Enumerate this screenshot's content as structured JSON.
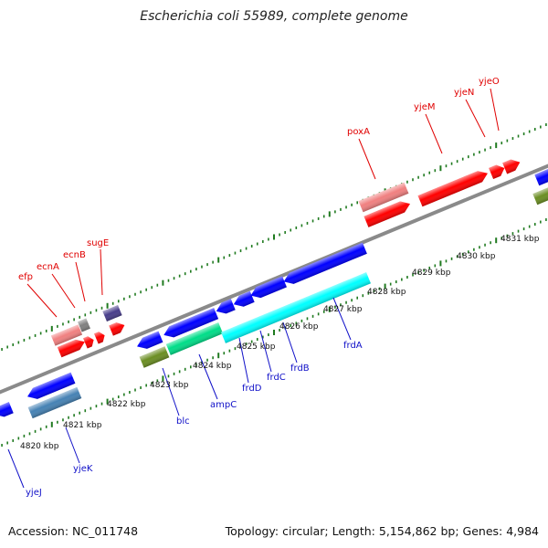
{
  "title": "Escherichia coli 55989, complete genome",
  "footer": {
    "accession": "Accession: NC_011748",
    "summary": "Topology: circular; Length: 5,154,862 bp; Genes: 4,984"
  },
  "colors": {
    "backbone": "#8a8a8a",
    "tick": "#1f7a1f",
    "forward_label": "#e00000",
    "reverse_label": "#1010c8",
    "red_gene": "#ff0000",
    "pink_gene": "#f08080",
    "blue_gene": "#0000ff",
    "cyan_gene": "#00ffff",
    "teal_gene": "#00dd88",
    "olive_gene": "#6b8e23",
    "steel_gene": "#4682b4",
    "slate_gene": "#483d8b",
    "gray_gene": "#808080"
  },
  "kbp_labels": [
    "4820 kbp",
    "4821 kbp",
    "4822 kbp",
    "4823 kbp",
    "4824 kbp",
    "4825 kbp",
    "4826 kbp",
    "4827 kbp",
    "4828 kbp",
    "4829 kbp",
    "4830 kbp",
    "4831 kbp"
  ],
  "forward_gene_labels": [
    "efp",
    "ecnA",
    "ecnB",
    "sugE",
    "poxA",
    "yjeM",
    "yjeN",
    "yjeO"
  ],
  "reverse_gene_labels": [
    "yjeJ",
    "yjeK",
    "blc",
    "ampC",
    "frdD",
    "frdC",
    "frdB",
    "frdA"
  ]
}
